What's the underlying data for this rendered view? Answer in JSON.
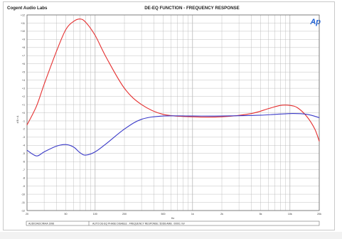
{
  "header": {
    "company": "Cogent Audio Labs",
    "title": "DE-EQ FUNCTION - FREQUENCY RESPONSE",
    "logo": "Ap"
  },
  "footer": {
    "left": "AUDIO/ADC/RIAA 1998",
    "right": "AUTO DE-EQ PHASE DISABLE . FREQUENCY RESPONSE: 5DDB AMB . 00001 mV"
  },
  "colors": {
    "red": "#e53030",
    "blue": "#3a3ac8",
    "grid": "#b9b9b9",
    "logo": "#1b5fd6"
  },
  "chart_data": {
    "type": "line",
    "title": "DE-EQ FUNCTION - FREQUENCY RESPONSE",
    "xscale": "log",
    "xlim": [
      20,
      20000
    ],
    "ylim": [
      -12,
      12
    ],
    "xticks": [
      {
        "v": 20,
        "label": "20"
      },
      {
        "v": 50,
        "label": "50"
      },
      {
        "v": 100,
        "label": "100"
      },
      {
        "v": 200,
        "label": "200"
      },
      {
        "v": 500,
        "label": "500"
      },
      {
        "v": 1000,
        "label": "1k"
      },
      {
        "v": 2000,
        "label": "2k"
      },
      {
        "v": 5000,
        "label": "5k"
      },
      {
        "v": 10000,
        "label": "10k"
      },
      {
        "v": 20000,
        "label": "20k"
      }
    ],
    "yticks": [
      {
        "v": 12,
        "label": "+12"
      },
      {
        "v": 11,
        "label": "+11"
      },
      {
        "v": 10,
        "label": "+10"
      },
      {
        "v": 9,
        "label": "+9"
      },
      {
        "v": 8,
        "label": "+8"
      },
      {
        "v": 7,
        "label": "+7"
      },
      {
        "v": 6,
        "label": "+6"
      },
      {
        "v": 5,
        "label": "+5"
      },
      {
        "v": 4,
        "label": "+4"
      },
      {
        "v": 3,
        "label": "+3"
      },
      {
        "v": 2,
        "label": "+2"
      },
      {
        "v": 1,
        "label": "+1"
      },
      {
        "v": 0,
        "label": "+0"
      },
      {
        "v": -1,
        "label": "-1"
      },
      {
        "v": -2,
        "label": "-2"
      },
      {
        "v": -3,
        "label": "-3"
      },
      {
        "v": -4,
        "label": "-4"
      },
      {
        "v": -5,
        "label": "-5"
      },
      {
        "v": -6,
        "label": "-6"
      },
      {
        "v": -7,
        "label": "-7"
      },
      {
        "v": -8,
        "label": "-8"
      },
      {
        "v": -9,
        "label": "-9"
      },
      {
        "v": -10,
        "label": "-10"
      },
      {
        "v": -11,
        "label": "-11"
      },
      {
        "v": -12,
        "label": "-12"
      }
    ],
    "ylabel": "d B r A",
    "xlabel": "Hz",
    "series": [
      {
        "color": "#e53030",
        "x": [
          20,
          25,
          30,
          40,
          50,
          60,
          70,
          80,
          100,
          130,
          200,
          300,
          500,
          1000,
          2000,
          4000,
          6000,
          8000,
          10000,
          12000,
          15000,
          18000,
          20000
        ],
        "y": [
          -1.5,
          0.8,
          3.5,
          7.5,
          10.2,
          11.2,
          11.5,
          11.1,
          9.5,
          6.8,
          3.0,
          1.0,
          -0.2,
          -0.5,
          -0.5,
          -0.1,
          0.5,
          0.9,
          0.9,
          0.6,
          -0.5,
          -2.0,
          -3.5
        ]
      },
      {
        "color": "#3a3ac8",
        "x": [
          20,
          25,
          30,
          40,
          50,
          60,
          70,
          80,
          100,
          130,
          200,
          300,
          500,
          1000,
          2000,
          5000,
          10000,
          15000,
          20000
        ],
        "y": [
          -4.6,
          -5.3,
          -4.8,
          -4.1,
          -3.9,
          -4.2,
          -4.9,
          -5.2,
          -4.8,
          -3.8,
          -2.0,
          -0.8,
          -0.4,
          -0.4,
          -0.4,
          -0.3,
          -0.1,
          -0.2,
          -0.6
        ]
      }
    ]
  }
}
